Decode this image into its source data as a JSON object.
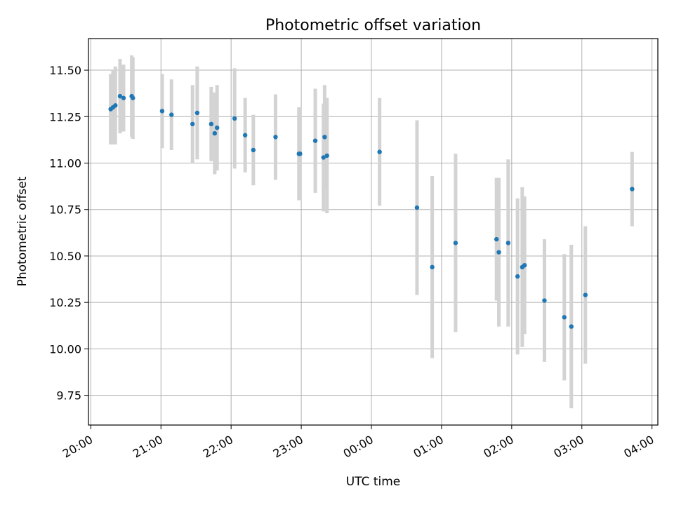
{
  "chart_data": {
    "type": "scatter",
    "title": "Photometric offset variation",
    "xlabel": "UTC time",
    "ylabel": "Photometric offset",
    "x_unit": "UTC time on the time axis; ticks span 20:00 to 04:00 of the next day",
    "xlim": [
      "19:58",
      "04:05"
    ],
    "ylim": [
      9.59,
      11.67
    ],
    "x_ticks": [
      "20:00",
      "21:00",
      "22:00",
      "23:00",
      "00:00",
      "01:00",
      "02:00",
      "03:00",
      "04:00"
    ],
    "y_ticks": [
      "9.75",
      "10.00",
      "10.25",
      "10.50",
      "10.75",
      "11.00",
      "11.25",
      "11.50"
    ],
    "grid": true,
    "marker_color": "#1f77b4",
    "errorbar_color": "#d3d3d3",
    "points": [
      {
        "x": "20:17",
        "y": 11.29,
        "err": 0.19
      },
      {
        "x": "20:19",
        "y": 11.3,
        "err": 0.2
      },
      {
        "x": "20:21",
        "y": 11.31,
        "err": 0.21
      },
      {
        "x": "20:25",
        "y": 11.36,
        "err": 0.2
      },
      {
        "x": "20:28",
        "y": 11.35,
        "err": 0.18
      },
      {
        "x": "20:35",
        "y": 11.36,
        "err": 0.22
      },
      {
        "x": "20:36",
        "y": 11.35,
        "err": 0.22
      },
      {
        "x": "21:01",
        "y": 11.28,
        "err": 0.2
      },
      {
        "x": "21:09",
        "y": 11.26,
        "err": 0.19
      },
      {
        "x": "21:27",
        "y": 11.21,
        "err": 0.21
      },
      {
        "x": "21:31",
        "y": 11.27,
        "err": 0.25
      },
      {
        "x": "21:43",
        "y": 11.21,
        "err": 0.2
      },
      {
        "x": "21:46",
        "y": 11.16,
        "err": 0.22
      },
      {
        "x": "21:48",
        "y": 11.19,
        "err": 0.23
      },
      {
        "x": "22:03",
        "y": 11.24,
        "err": 0.27
      },
      {
        "x": "22:12",
        "y": 11.15,
        "err": 0.2
      },
      {
        "x": "22:19",
        "y": 11.07,
        "err": 0.19
      },
      {
        "x": "22:38",
        "y": 11.14,
        "err": 0.23
      },
      {
        "x": "22:58",
        "y": 11.05,
        "err": 0.25
      },
      {
        "x": "22:59",
        "y": 11.05,
        "err": 0.25
      },
      {
        "x": "23:12",
        "y": 11.12,
        "err": 0.28
      },
      {
        "x": "23:19",
        "y": 11.03,
        "err": 0.29
      },
      {
        "x": "23:20",
        "y": 11.14,
        "err": 0.28
      },
      {
        "x": "23:22",
        "y": 11.04,
        "err": 0.31
      },
      {
        "x": "00:07",
        "y": 11.06,
        "err": 0.29
      },
      {
        "x": "00:39",
        "y": 10.76,
        "err": 0.47
      },
      {
        "x": "00:52",
        "y": 10.44,
        "err": 0.49
      },
      {
        "x": "01:12",
        "y": 10.57,
        "err": 0.48
      },
      {
        "x": "01:47",
        "y": 10.59,
        "err": 0.33
      },
      {
        "x": "01:49",
        "y": 10.52,
        "err": 0.4
      },
      {
        "x": "01:57",
        "y": 10.57,
        "err": 0.45
      },
      {
        "x": "02:05",
        "y": 10.39,
        "err": 0.42
      },
      {
        "x": "02:09",
        "y": 10.44,
        "err": 0.43
      },
      {
        "x": "02:11",
        "y": 10.45,
        "err": 0.37
      },
      {
        "x": "02:28",
        "y": 10.26,
        "err": 0.33
      },
      {
        "x": "02:45",
        "y": 10.17,
        "err": 0.34
      },
      {
        "x": "02:51",
        "y": 10.12,
        "err": 0.44
      },
      {
        "x": "03:03",
        "y": 10.29,
        "err": 0.37
      },
      {
        "x": "03:43",
        "y": 10.86,
        "err": 0.2
      }
    ]
  }
}
